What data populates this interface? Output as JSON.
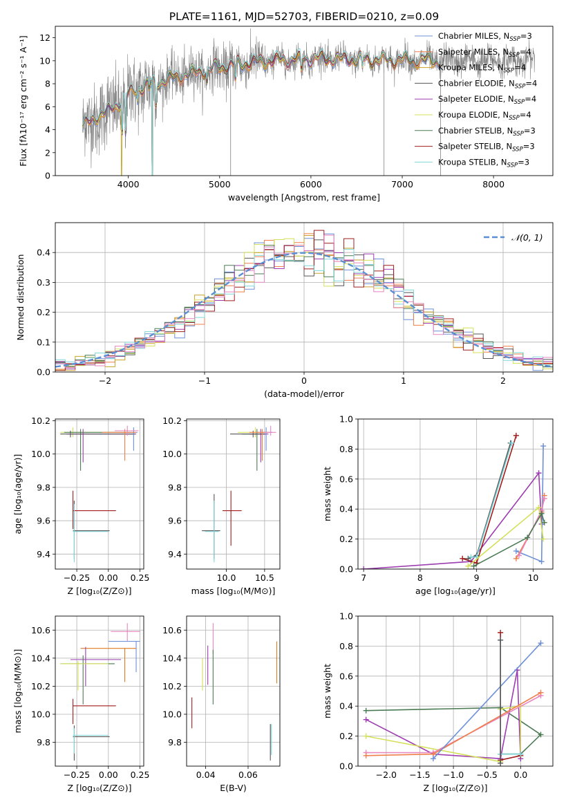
{
  "figure": {
    "title": "PLATE=1161, MJD=52703, FIBERID=0210, z=0.09"
  },
  "colors": {
    "chabrier_miles": "#6b8fd6",
    "salpeter_miles": "#f07f4a",
    "kroupa_miles": "#c9a227",
    "chabrier_elodie": "#555555",
    "salpeter_elodie": "#9c3cb0",
    "kroupa_elodie": "#d4e05a",
    "chabrier_stelib": "#4a7a52",
    "salpeter_stelib": "#a01c1c",
    "kroupa_stelib": "#7fd6d9",
    "pink": "#e884c0",
    "orange2": "#e07a20",
    "gauss": "#5b8fd4",
    "grid": "#b0b0b0"
  },
  "chart_data": [
    {
      "id": "spectrum",
      "type": "line",
      "xlabel": "wavelength [Angstrom, rest frame]",
      "ylabel": "Flux [fλ10⁻¹⁷ erg cm⁻² s⁻¹ A⁻¹]",
      "xlim": [
        3200,
        8650
      ],
      "ylim": [
        0,
        13
      ],
      "xticks": [
        4000,
        5000,
        6000,
        7000,
        8000
      ],
      "yticks": [
        0,
        2,
        4,
        6,
        8,
        10,
        12
      ],
      "grid": false,
      "legend_position": "top-right",
      "legend": [
        "Chabrier MILES, N_SSP=3",
        "Salpeter MILES, N_SSP=4",
        "Kroupa MILES, N_SSP=4",
        "Chabrier ELODIE, N_SSP=4",
        "Salpeter ELODIE, N_SSP=4",
        "Kroupa ELODIE, N_SSP=4",
        "Chabrier STELIB, N_SSP=3",
        "Salpeter STELIB, N_SSP=3",
        "Kroupa STELIB, N_SSP=3"
      ],
      "continuum": [
        [
          3500,
          4.3
        ],
        [
          3600,
          4.8
        ],
        [
          3700,
          5.3
        ],
        [
          3800,
          5.7
        ],
        [
          3900,
          6.3
        ],
        [
          4000,
          7.1
        ],
        [
          4100,
          7.6
        ],
        [
          4300,
          8.1
        ],
        [
          4500,
          8.5
        ],
        [
          4700,
          8.9
        ],
        [
          5000,
          9.4
        ],
        [
          5200,
          9.7
        ],
        [
          5500,
          9.95
        ],
        [
          5800,
          10.1
        ],
        [
          6000,
          10.2
        ],
        [
          6300,
          10.15
        ],
        [
          6600,
          10.1
        ],
        [
          7000,
          10.05
        ],
        [
          7400,
          10.0
        ]
      ],
      "absorption_lines": [
        [
          3934,
          3
        ],
        [
          3969,
          3.5
        ],
        [
          4102,
          1
        ],
        [
          4227,
          0.6
        ],
        [
          4304,
          2
        ],
        [
          4861,
          1
        ],
        [
          5175,
          1.5
        ],
        [
          5894,
          1.2
        ],
        [
          6563,
          1
        ]
      ]
    },
    {
      "id": "residuals",
      "type": "line",
      "xlabel": "(data-model)/error",
      "ylabel": "Normed distribution",
      "xlim": [
        -2.5,
        2.5
      ],
      "ylim": [
        0,
        0.5
      ],
      "xticks": [
        -2,
        -1,
        0,
        1,
        2
      ],
      "yticks": [
        0.0,
        0.1,
        0.2,
        0.3,
        0.4
      ],
      "grid": true,
      "legend_position": "top-right",
      "legend": [
        "𝒩(0, 1)"
      ]
    },
    {
      "id": "age_vs_Z",
      "type": "scatter",
      "xlabel": "Z [log₁₀(Z/Z⊙)]",
      "ylabel": "age  [log₁₀(age/yr)]",
      "xlim": [
        -0.42,
        0.28
      ],
      "ylim": [
        9.31,
        10.21
      ],
      "xticks": [
        -0.25,
        0.0,
        0.25
      ],
      "yticks": [
        9.4,
        9.6,
        9.8,
        10.0,
        10.2
      ],
      "points": [
        {
          "x": -0.28,
          "y": 10.13,
          "xmin": -0.38,
          "xmax": 0.2,
          "ymin": 10.1,
          "ymax": 10.16,
          "c": "kroupa_elodie"
        },
        {
          "x": -0.22,
          "y": 10.13,
          "xmin": -0.35,
          "xmax": 0.18,
          "ymin": 9.9,
          "ymax": 10.15,
          "c": "chabrier_stelib"
        },
        {
          "x": -0.2,
          "y": 10.12,
          "xmin": -0.33,
          "xmax": 0.22,
          "ymin": 9.95,
          "ymax": 10.15,
          "c": "salpeter_elodie"
        },
        {
          "x": -0.3,
          "y": 10.12,
          "xmin": -0.38,
          "xmax": 0.21,
          "ymin": 10.1,
          "ymax": 10.14,
          "c": "chabrier_elodie"
        },
        {
          "x": 0.2,
          "y": 10.13,
          "xmin": 0.15,
          "xmax": 0.23,
          "ymin": 10.02,
          "ymax": 10.16,
          "c": "chabrier_miles"
        },
        {
          "x": 0.13,
          "y": 10.13,
          "xmin": -0.05,
          "xmax": 0.22,
          "ymin": 9.96,
          "ymax": 10.15,
          "c": "salpeter_miles"
        },
        {
          "x": 0.15,
          "y": 10.14,
          "xmin": 0.05,
          "xmax": 0.24,
          "ymin": 10.11,
          "ymax": 10.17,
          "c": "pink"
        },
        {
          "x": -0.28,
          "y": 9.66,
          "xmin": -0.28,
          "xmax": 0.06,
          "ymin": 9.55,
          "ymax": 9.78,
          "c": "salpeter_stelib"
        },
        {
          "x": -0.27,
          "y": 9.54,
          "xmin": -0.28,
          "xmax": 0.01,
          "ymin": 9.37,
          "ymax": 9.72,
          "c": "chabrier_elodie"
        },
        {
          "x": -0.27,
          "y": 9.535,
          "xmin": -0.28,
          "xmax": 0.0,
          "ymin": 9.35,
          "ymax": 9.7,
          "c": "kroupa_stelib"
        }
      ]
    },
    {
      "id": "age_vs_mass",
      "type": "scatter",
      "xlabel": "mass [log₁₀(M/M⊙)]",
      "ylabel": "",
      "xlim": [
        9.48,
        10.7
      ],
      "ylim": [
        9.31,
        10.21
      ],
      "xticks": [
        10.0,
        10.5
      ],
      "yticks": [
        9.4,
        9.6,
        9.8,
        10.0,
        10.2
      ],
      "points": [
        {
          "x": 10.38,
          "y": 10.13,
          "xmin": 10.15,
          "xmax": 10.55,
          "ymin": 10.1,
          "ymax": 10.16,
          "c": "kroupa_elodie"
        },
        {
          "x": 10.4,
          "y": 10.12,
          "xmin": 10.2,
          "xmax": 10.52,
          "ymin": 9.9,
          "ymax": 10.15,
          "c": "chabrier_stelib"
        },
        {
          "x": 10.45,
          "y": 10.12,
          "xmin": 10.3,
          "xmax": 10.55,
          "ymin": 9.95,
          "ymax": 10.15,
          "c": "salpeter_elodie"
        },
        {
          "x": 10.35,
          "y": 10.12,
          "xmin": 10.05,
          "xmax": 10.5,
          "ymin": 10.1,
          "ymax": 10.14,
          "c": "chabrier_elodie"
        },
        {
          "x": 10.52,
          "y": 10.13,
          "xmin": 10.4,
          "xmax": 10.6,
          "ymin": 10.02,
          "ymax": 10.16,
          "c": "chabrier_miles"
        },
        {
          "x": 10.47,
          "y": 10.13,
          "xmin": 10.3,
          "xmax": 10.55,
          "ymin": 9.96,
          "ymax": 10.15,
          "c": "salpeter_miles"
        },
        {
          "x": 10.58,
          "y": 10.13,
          "xmin": 10.5,
          "xmax": 10.65,
          "ymin": 10.11,
          "ymax": 10.17,
          "c": "pink"
        },
        {
          "x": 10.06,
          "y": 9.66,
          "xmin": 9.95,
          "xmax": 10.2,
          "ymin": 9.45,
          "ymax": 9.78,
          "c": "salpeter_stelib"
        },
        {
          "x": 9.84,
          "y": 9.54,
          "xmin": 9.68,
          "xmax": 9.92,
          "ymin": 9.37,
          "ymax": 9.76,
          "c": "chabrier_elodie"
        },
        {
          "x": 9.84,
          "y": 9.535,
          "xmin": 9.72,
          "xmax": 9.9,
          "ymin": 9.35,
          "ymax": 9.72,
          "c": "kroupa_stelib"
        }
      ]
    },
    {
      "id": "weight_vs_age",
      "type": "line",
      "xlabel": "age  [log₁₀(age/yr)]",
      "ylabel": "mass weight",
      "xlim": [
        6.9,
        10.35
      ],
      "ylim": [
        0,
        1
      ],
      "xticks": [
        7,
        8,
        9,
        10
      ],
      "yticks": [
        0.0,
        0.2,
        0.4,
        0.6,
        0.8,
        1.0
      ],
      "grid": true,
      "series": [
        {
          "c": "salpeter_elodie",
          "points": [
            [
              7.0,
              0.0
            ],
            [
              8.9,
              0.05
            ],
            [
              10.1,
              0.64
            ],
            [
              10.15,
              0.3
            ]
          ]
        },
        {
          "c": "salpeter_stelib",
          "points": [
            [
              8.75,
              0.07
            ],
            [
              9.0,
              0.04
            ],
            [
              9.7,
              0.89
            ]
          ]
        },
        {
          "c": "chabrier_elodie",
          "points": [
            [
              8.85,
              0.07
            ],
            [
              9.0,
              0.09
            ],
            [
              9.6,
              0.84
            ]
          ]
        },
        {
          "c": "kroupa_stelib",
          "points": [
            [
              8.9,
              0.08
            ],
            [
              9.0,
              0.08
            ],
            [
              9.62,
              0.84
            ]
          ]
        },
        {
          "c": "chabrier_miles",
          "points": [
            [
              9.7,
              0.12
            ],
            [
              10.15,
              0.05
            ],
            [
              10.18,
              0.82
            ]
          ]
        },
        {
          "c": "salpeter_miles",
          "points": [
            [
              9.7,
              0.07
            ],
            [
              10.15,
              0.38
            ],
            [
              10.2,
              0.49
            ]
          ]
        },
        {
          "c": "pink",
          "points": [
            [
              9.75,
              0.09
            ],
            [
              10.15,
              0.39
            ],
            [
              10.2,
              0.47
            ]
          ]
        },
        {
          "c": "kroupa_elodie",
          "points": [
            [
              8.85,
              0.02
            ],
            [
              10.1,
              0.41
            ],
            [
              10.18,
              0.2
            ]
          ]
        },
        {
          "c": "chabrier_stelib",
          "points": [
            [
              8.95,
              0.02
            ],
            [
              9.9,
              0.21
            ],
            [
              10.15,
              0.37
            ],
            [
              10.2,
              0.31
            ]
          ]
        }
      ]
    },
    {
      "id": "mass_vs_Z",
      "type": "scatter",
      "xlabel": "Z [log₁₀(Z/Z⊙)]",
      "ylabel": "mass [log₁₀(M/M⊙)]",
      "xlim": [
        -0.42,
        0.28
      ],
      "ylim": [
        9.63,
        10.7
      ],
      "xticks": [
        -0.25,
        0.0,
        0.25
      ],
      "yticks": [
        9.8,
        10.0,
        10.2,
        10.4,
        10.6
      ],
      "points": [
        {
          "x": 0.15,
          "y": 10.59,
          "xmin": 0.02,
          "xmax": 0.25,
          "ymin": 10.52,
          "ymax": 10.65,
          "c": "pink"
        },
        {
          "x": 0.22,
          "y": 10.52,
          "xmin": 0.0,
          "xmax": 0.25,
          "ymin": 10.3,
          "ymax": 10.52,
          "c": "chabrier_miles"
        },
        {
          "x": 0.13,
          "y": 10.47,
          "xmin": -0.22,
          "xmax": 0.22,
          "ymin": 10.23,
          "ymax": 10.47,
          "c": "orange2"
        },
        {
          "x": -0.18,
          "y": 10.39,
          "xmin": -0.3,
          "xmax": 0.1,
          "ymin": 10.2,
          "ymax": 10.48,
          "c": "salpeter_elodie"
        },
        {
          "x": -0.2,
          "y": 10.36,
          "xmin": -0.38,
          "xmax": 0.05,
          "ymin": 10.07,
          "ymax": 10.42,
          "c": "chabrier_stelib"
        },
        {
          "x": -0.24,
          "y": 10.36,
          "xmin": -0.38,
          "xmax": 0.0,
          "ymin": 10.17,
          "ymax": 10.38,
          "c": "kroupa_elodie"
        },
        {
          "x": -0.28,
          "y": 10.06,
          "xmin": -0.28,
          "xmax": 0.06,
          "ymin": 9.93,
          "ymax": 10.11,
          "c": "salpeter_stelib"
        },
        {
          "x": -0.27,
          "y": 9.84,
          "xmin": -0.28,
          "xmax": 0.01,
          "ymin": 9.67,
          "ymax": 9.92,
          "c": "chabrier_elodie"
        },
        {
          "x": -0.27,
          "y": 9.85,
          "xmin": -0.28,
          "xmax": 0.0,
          "ymin": 9.72,
          "ymax": 9.9,
          "c": "kroupa_stelib"
        }
      ]
    },
    {
      "id": "mass_vs_EBV",
      "type": "scatter",
      "xlabel": "E(B-V)",
      "ylabel": "",
      "xlim": [
        0.031,
        0.075
      ],
      "ylim": [
        9.63,
        10.7
      ],
      "xticks": [
        0.04,
        0.06
      ],
      "yticks": [
        9.8,
        10.0,
        10.2,
        10.4,
        10.6
      ],
      "points": [
        {
          "x": 0.0435,
          "y": 10.55,
          "ymin": 10.43,
          "ymax": 10.65,
          "c": "pink"
        },
        {
          "x": 0.0735,
          "y": 10.37,
          "ymin": 10.22,
          "ymax": 10.52,
          "c": "orange2"
        },
        {
          "x": 0.041,
          "y": 10.35,
          "ymin": 10.21,
          "ymax": 10.49,
          "c": "salpeter_elodie"
        },
        {
          "x": 0.0435,
          "y": 10.26,
          "ymin": 10.07,
          "ymax": 10.46,
          "c": "chabrier_stelib"
        },
        {
          "x": 0.0385,
          "y": 10.28,
          "ymin": 10.17,
          "ymax": 10.4,
          "c": "kroupa_elodie"
        },
        {
          "x": 0.0335,
          "y": 10.06,
          "ymin": 9.9,
          "ymax": 10.12,
          "c": "salpeter_stelib"
        },
        {
          "x": 0.0705,
          "y": 9.8,
          "ymin": 9.67,
          "ymax": 9.93,
          "c": "chabrier_elodie"
        },
        {
          "x": 0.071,
          "y": 9.82,
          "ymin": 9.71,
          "ymax": 9.93,
          "c": "kroupa_stelib"
        }
      ]
    },
    {
      "id": "weight_vs_Z",
      "type": "line",
      "xlabel": "Z [log₁₀(Z/Z⊙)]",
      "ylabel": "mass weight",
      "xlim": [
        -2.42,
        0.48
      ],
      "ylim": [
        0,
        1
      ],
      "xticks": [
        -2.0,
        -1.5,
        -1.0,
        -0.5,
        0.0
      ],
      "yticks": [
        0.0,
        0.2,
        0.4,
        0.6,
        0.8,
        1.0
      ],
      "grid": true,
      "series": [
        {
          "c": "chabrier_stelib",
          "points": [
            [
              -2.3,
              0.37
            ],
            [
              -0.3,
              0.39
            ],
            [
              0.3,
              0.21
            ],
            [
              0.0,
              0.08
            ],
            [
              -0.3,
              0.08
            ]
          ]
        },
        {
          "c": "salpeter_elodie",
          "points": [
            [
              -2.3,
              0.31
            ],
            [
              -1.3,
              0.08
            ],
            [
              -0.3,
              0.05
            ],
            [
              -0.05,
              0.64
            ],
            [
              0.0,
              0.05
            ]
          ]
        },
        {
          "c": "kroupa_elodie",
          "points": [
            [
              -2.3,
              0.2
            ],
            [
              -0.3,
              0.03
            ],
            [
              -0.3,
              0.38
            ],
            [
              0.0,
              0.4
            ],
            [
              0.0,
              0.07
            ]
          ]
        },
        {
          "c": "pink",
          "points": [
            [
              -2.3,
              0.09
            ],
            [
              -1.3,
              0.09
            ],
            [
              0.3,
              0.47
            ]
          ]
        },
        {
          "c": "salpeter_miles",
          "points": [
            [
              -2.3,
              0.07
            ],
            [
              -1.3,
              0.08
            ],
            [
              0.3,
              0.49
            ]
          ]
        },
        {
          "c": "chabrier_miles",
          "points": [
            [
              -1.3,
              0.05
            ],
            [
              0.3,
              0.82
            ]
          ]
        },
        {
          "c": "salpeter_stelib",
          "points": [
            [
              -0.3,
              0.89
            ],
            [
              -0.3,
              0.04
            ],
            [
              0.0,
              0.07
            ]
          ]
        },
        {
          "c": "kroupa_stelib",
          "points": [
            [
              -0.3,
              0.84
            ],
            [
              -0.3,
              0.08
            ],
            [
              0.0,
              0.08
            ]
          ]
        },
        {
          "c": "chabrier_elodie",
          "points": [
            [
              -0.3,
              0.84
            ],
            [
              -0.3,
              0.02
            ]
          ]
        }
      ]
    }
  ]
}
